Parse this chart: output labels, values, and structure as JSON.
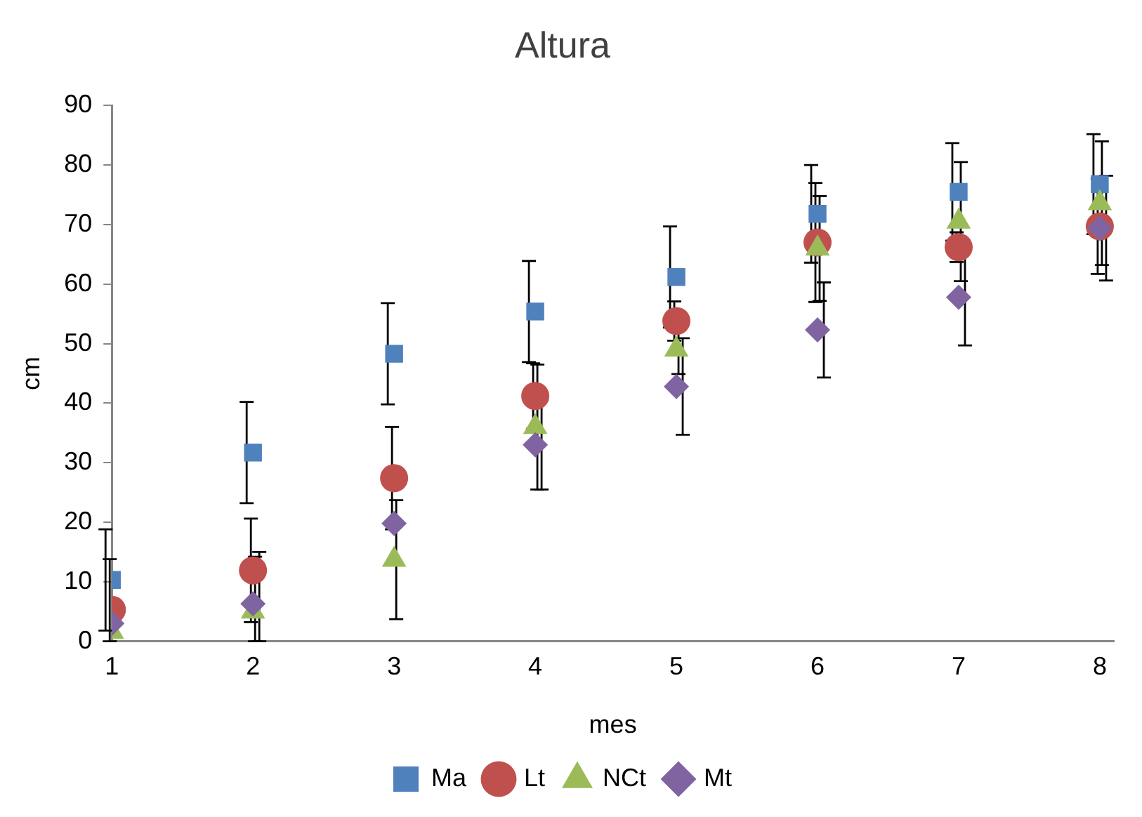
{
  "chart_data": {
    "type": "scatter",
    "title": "Altura",
    "xlabel": "mes",
    "ylabel": "cm",
    "x": [
      1,
      2,
      3,
      4,
      5,
      6,
      7,
      8
    ],
    "xlim": [
      1,
      8.1
    ],
    "xticks": [
      1,
      2,
      3,
      4,
      5,
      6,
      7,
      8
    ],
    "ylim": [
      0,
      90
    ],
    "yticks": [
      0,
      10,
      20,
      30,
      40,
      50,
      60,
      70,
      80,
      90
    ],
    "grid": false,
    "legend": "bottom",
    "series": [
      {
        "name": "Ma",
        "color": "#4f81bd",
        "marker": "square",
        "values": [
          10.3,
          31.7,
          48.3,
          55.4,
          61.2,
          71.8,
          75.5,
          76.8
        ],
        "errors": [
          8.5,
          8.5,
          8.5,
          8.5,
          8.5,
          8.2,
          8.2,
          8.4
        ]
      },
      {
        "name": "Lt",
        "color": "#c0504d",
        "marker": "circle",
        "values": [
          5.3,
          11.9,
          27.4,
          41.2,
          53.8,
          67,
          66.2,
          69.7
        ],
        "errors": [
          [
            0,
            13.8
          ],
          8.7,
          8.6,
          5.5,
          3.3,
          10,
          2.5,
          8
        ]
      },
      {
        "name": "NCt",
        "color": "#9bbb59",
        "marker": "triangle",
        "values": [
          1.6,
          5,
          13.7,
          36,
          49,
          66,
          70.5,
          73.6
        ],
        "errors": [
          null,
          [
            0,
            14.2
          ],
          10,
          10.5,
          4.1,
          8.8,
          10,
          10.4
        ]
      },
      {
        "name": "Mt",
        "color": "#8064a2",
        "marker": "diamond",
        "values": [
          3,
          6.3,
          19.8,
          33,
          42.8,
          52.3,
          57.8,
          69.4
        ],
        "errors": [
          null,
          [
            0,
            15
          ],
          null,
          7.5,
          8.1,
          8,
          8.1,
          8.8
        ]
      }
    ]
  }
}
